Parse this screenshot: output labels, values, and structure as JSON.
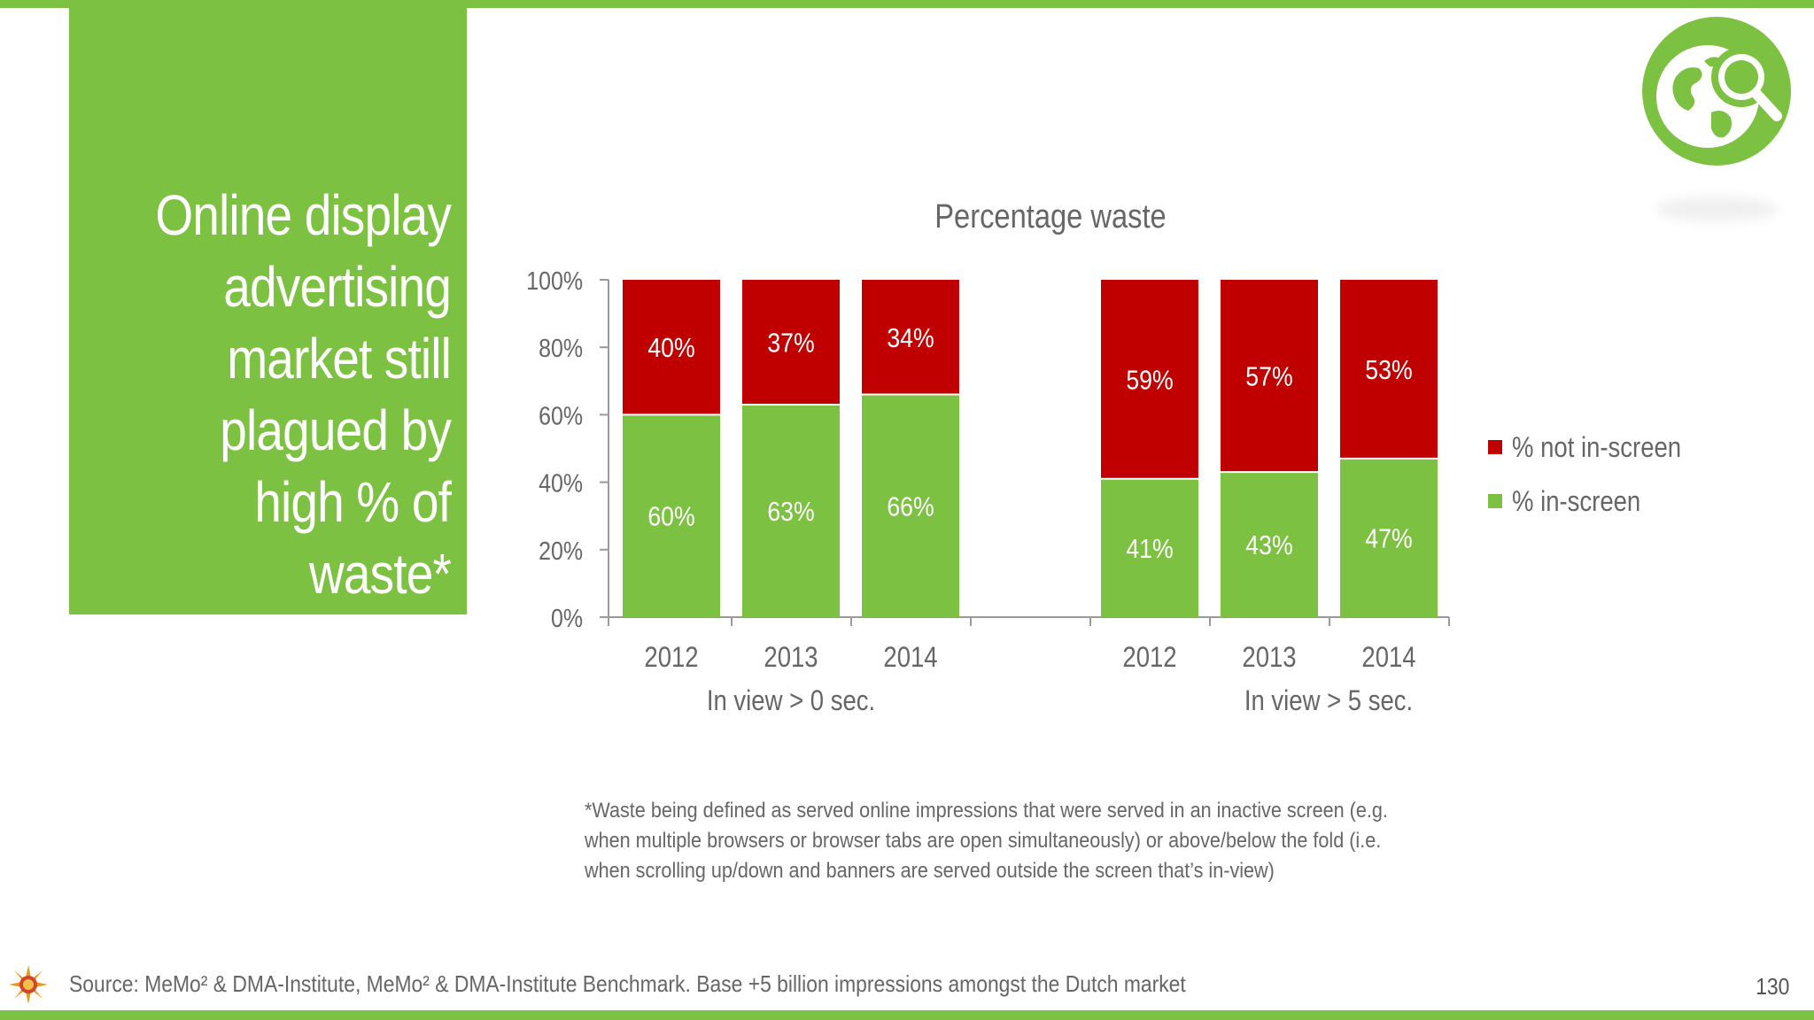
{
  "slide": {
    "title_lines": [
      "Online display",
      "advertising",
      "market still",
      "plagued by",
      "high % of",
      "waste*"
    ],
    "footnote_lines": [
      "*Waste being defined as served online impressions that were served in an inactive screen (e.g.",
      "when multiple browsers or browser tabs are open simultaneously) or above/below the fold (i.e.",
      "when scrolling up/down and banners are served outside the screen that’s in-view)"
    ],
    "source": "Source: MeMo² & DMA-Institute, MeMo² & DMA-Institute Benchmark. Base +5 billion impressions amongst the Dutch market",
    "page_number": "130",
    "logo_icon": "globe-search-icon",
    "source_icon": "sun-emblem-icon"
  },
  "colors": {
    "brand_green": "#7dc142",
    "not_in_screen": "#c00000",
    "in_screen": "#7dc142",
    "axis": "#9a9a9a",
    "text_gray": "#666666"
  },
  "chart_data": {
    "type": "bar",
    "stacked": true,
    "title": "Percentage waste",
    "categories": [
      "2012",
      "2013",
      "2014",
      "2012",
      "2013",
      "2014"
    ],
    "groups": [
      {
        "label": "In view > 0 sec.",
        "categories": [
          "2012",
          "2013",
          "2014"
        ]
      },
      {
        "label": "In view > 5 sec.",
        "categories": [
          "2012",
          "2013",
          "2014"
        ]
      }
    ],
    "series": [
      {
        "name": "% in-screen",
        "color": "#7dc142",
        "values": [
          60,
          63,
          66,
          41,
          43,
          47
        ],
        "labels": [
          "60%",
          "63%",
          "66%",
          "41%",
          "43%",
          "47%"
        ]
      },
      {
        "name": "% not in-screen",
        "color": "#c00000",
        "values": [
          40,
          37,
          34,
          59,
          57,
          53
        ],
        "labels": [
          "40%",
          "37%",
          "34%",
          "59%",
          "57%",
          "53%"
        ]
      }
    ],
    "yticks": [
      "0%",
      "20%",
      "40%",
      "60%",
      "80%",
      "100%"
    ],
    "ylim": [
      0,
      100
    ],
    "legend": [
      "% not in-screen",
      "% in-screen"
    ],
    "legend_position": "right",
    "grid": false
  }
}
